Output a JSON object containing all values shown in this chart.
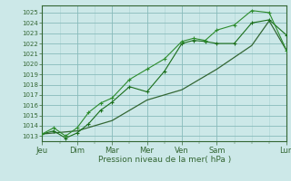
{
  "xlabel": "Pression niveau de la mer( hPa )",
  "ylim": [
    1012.5,
    1025.7
  ],
  "yticks": [
    1013,
    1014,
    1015,
    1016,
    1017,
    1018,
    1019,
    1020,
    1021,
    1022,
    1023,
    1024,
    1025
  ],
  "day_labels": [
    "Jeu",
    "Dim",
    "Mar",
    "Mer",
    "Ven",
    "Sam",
    "Lun"
  ],
  "day_positions": [
    0,
    1,
    2,
    3,
    4,
    5,
    7
  ],
  "background_color": "#cce8e8",
  "grid_minor_color": "#aad4d4",
  "grid_major_color": "#88bbbb",
  "line_color1": "#1a6e1a",
  "line_color2": "#2d8c2d",
  "line_color3": "#336633",
  "series1_x": [
    0,
    0.33,
    0.67,
    1.0,
    1.33,
    1.67,
    2.0,
    2.5,
    3.0,
    3.5,
    4.0,
    4.33,
    4.67,
    5.0,
    5.5,
    6.0,
    6.5,
    7.0
  ],
  "series1_y": [
    1013.2,
    1013.5,
    1012.8,
    1013.3,
    1014.2,
    1015.5,
    1016.3,
    1017.8,
    1017.3,
    1019.3,
    1022.0,
    1022.3,
    1022.2,
    1022.0,
    1022.0,
    1024.0,
    1024.3,
    1022.8
  ],
  "series2_x": [
    0,
    0.33,
    0.67,
    1.0,
    1.33,
    1.67,
    2.0,
    2.5,
    3.0,
    3.5,
    4.0,
    4.33,
    4.67,
    5.0,
    5.5,
    6.0,
    6.5,
    7.0
  ],
  "series2_y": [
    1013.2,
    1013.8,
    1013.0,
    1013.8,
    1015.3,
    1016.2,
    1016.7,
    1018.5,
    1019.5,
    1020.5,
    1022.2,
    1022.5,
    1022.3,
    1023.3,
    1023.8,
    1025.2,
    1025.0,
    1021.3
  ],
  "series3_x": [
    0,
    1.0,
    2.0,
    3.0,
    4.0,
    5.0,
    6.0,
    6.5,
    7.0
  ],
  "series3_y": [
    1013.2,
    1013.5,
    1014.5,
    1016.5,
    1017.5,
    1019.5,
    1021.8,
    1024.2,
    1021.3
  ],
  "xlim": [
    0,
    7.0
  ]
}
